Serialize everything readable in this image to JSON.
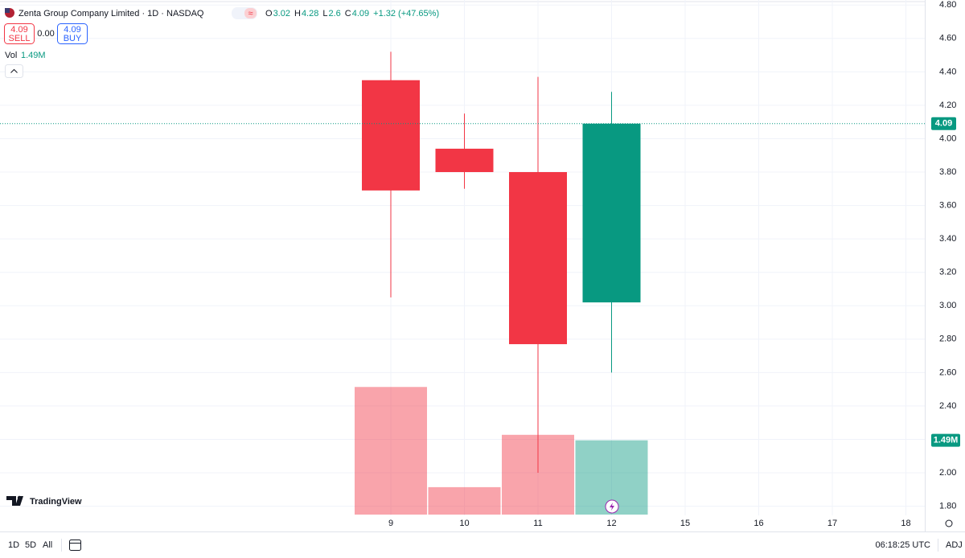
{
  "ui": {
    "symbol": "Zenta Group Company Limited · 1D · NASDAQ",
    "sell_price": "4.09",
    "sell": "SELL",
    "spread": "0.00",
    "buy_price": "4.09",
    "buy": "BUY",
    "ohlc_letters": [
      "O",
      "H",
      "L",
      "C"
    ],
    "change": "+1.32 (+47.65%)",
    "brand": "TradingView",
    "ranges": [
      "1D",
      "5D",
      "All"
    ],
    "clock": "06:18:25 UTC",
    "adj": "ADJ"
  },
  "chart_data": {
    "type": "candlestick",
    "categories": [
      "9",
      "10",
      "11",
      "12",
      "15",
      "16",
      "17",
      "18"
    ],
    "open": [
      4.35,
      3.94,
      3.8,
      3.02,
      null,
      null,
      null,
      null
    ],
    "high": [
      4.52,
      4.15,
      4.37,
      4.28,
      null,
      null,
      null,
      null
    ],
    "low": [
      3.05,
      3.7,
      2.0,
      2.6,
      null,
      null,
      null,
      null
    ],
    "close": [
      3.69,
      3.8,
      2.77,
      4.09,
      null,
      null,
      null,
      null
    ],
    "up_color": "#089981",
    "down_color": "#f23645",
    "volume": {
      "name": "Vol",
      "values": [
        2.56,
        0.55,
        1.6,
        1.49,
        null,
        null,
        null,
        null
      ],
      "value_labels": [
        null,
        null,
        null,
        "1.49M",
        null,
        null,
        null,
        null
      ]
    },
    "ylim": [
      1.75,
      4.83
    ],
    "yticks": [
      {
        "value": 1.8,
        "label": "1.80"
      },
      {
        "value": 2.0,
        "label": "2.00"
      },
      {
        "value": 2.2,
        "label": "2.20"
      },
      {
        "value": 2.4,
        "label": "2.40"
      },
      {
        "value": 2.6,
        "label": "2.60"
      },
      {
        "value": 2.8,
        "label": "2.80"
      },
      {
        "value": 3.0,
        "label": "3.00"
      },
      {
        "value": 3.2,
        "label": "3.20"
      },
      {
        "value": 3.4,
        "label": "3.40"
      },
      {
        "value": 3.6,
        "label": "3.60"
      },
      {
        "value": 3.8,
        "label": "3.80"
      },
      {
        "value": 4.0,
        "label": "4.00"
      },
      {
        "value": 4.2,
        "label": "4.20"
      },
      {
        "value": 4.4,
        "label": "4.40"
      },
      {
        "value": 4.6,
        "label": "4.60"
      },
      {
        "value": 4.8,
        "label": "4.80"
      }
    ],
    "grid": true
  }
}
